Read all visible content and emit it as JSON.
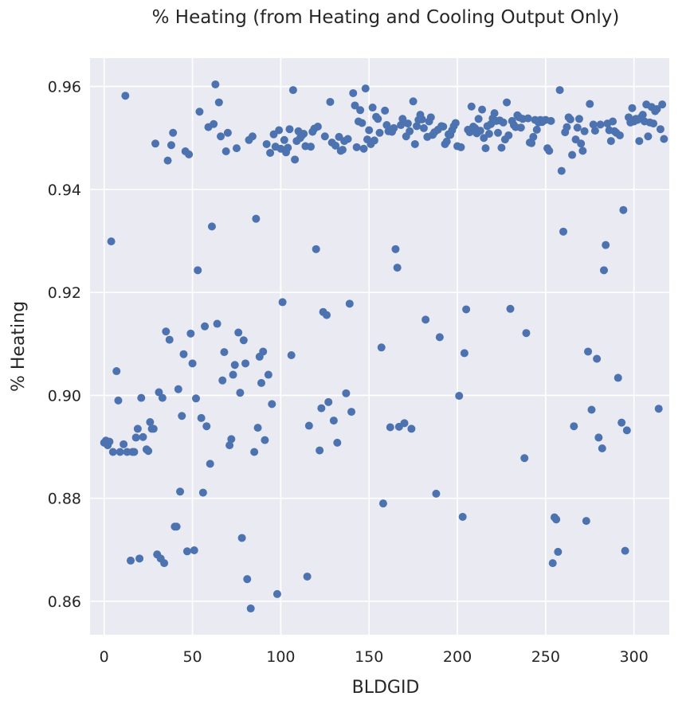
{
  "chart_data": {
    "type": "scatter",
    "title": "% Heating (from Heating and Cooling Output Only)",
    "xlabel": "BLDGID",
    "ylabel": "% Heating",
    "xlim": [
      -8,
      320
    ],
    "ylim": [
      0.8535,
      0.9655
    ],
    "xticks": [
      0,
      50,
      100,
      150,
      200,
      250,
      300
    ],
    "yticks": [
      0.86,
      0.88,
      0.9,
      0.92,
      0.94,
      0.96
    ],
    "ytick_labels": [
      "0.86",
      "0.88",
      "0.90",
      "0.92",
      "0.94",
      "0.96"
    ],
    "grid": true,
    "background": "#eaeaf2",
    "marker_color": "#4c72b0",
    "points": [
      [
        0,
        0.8908
      ],
      [
        1,
        0.8912
      ],
      [
        2,
        0.8903
      ],
      [
        3,
        0.891
      ],
      [
        4,
        0.9299
      ],
      [
        5,
        0.889
      ],
      [
        7,
        0.9047
      ],
      [
        8,
        0.899
      ],
      [
        9,
        0.889
      ],
      [
        11,
        0.8905
      ],
      [
        12,
        0.9582
      ],
      [
        13,
        0.889
      ],
      [
        15,
        0.8679
      ],
      [
        16,
        0.889
      ],
      [
        17,
        0.889
      ],
      [
        18,
        0.8918
      ],
      [
        19,
        0.8935
      ],
      [
        20,
        0.8683
      ],
      [
        21,
        0.8995
      ],
      [
        22,
        0.8919
      ],
      [
        24,
        0.8895
      ],
      [
        25,
        0.8892
      ],
      [
        26,
        0.8948
      ],
      [
        27,
        0.8935
      ],
      [
        28,
        0.8935
      ],
      [
        29,
        0.9489
      ],
      [
        30,
        0.8691
      ],
      [
        31,
        0.9006
      ],
      [
        32,
        0.8683
      ],
      [
        33,
        0.8995
      ],
      [
        34,
        0.8674
      ],
      [
        35,
        0.9124
      ],
      [
        36,
        0.9456
      ],
      [
        37,
        0.9108
      ],
      [
        38,
        0.9486
      ],
      [
        39,
        0.951
      ],
      [
        40,
        0.8745
      ],
      [
        41,
        0.8745
      ],
      [
        42,
        0.9012
      ],
      [
        43,
        0.8813
      ],
      [
        44,
        0.896
      ],
      [
        45,
        0.908
      ],
      [
        46,
        0.9474
      ],
      [
        47,
        0.8697
      ],
      [
        48,
        0.9468
      ],
      [
        49,
        0.912
      ],
      [
        50,
        0.9062
      ],
      [
        51,
        0.8699
      ],
      [
        52,
        0.8994
      ],
      [
        53,
        0.9243
      ],
      [
        54,
        0.9551
      ],
      [
        55,
        0.8956
      ],
      [
        56,
        0.8811
      ],
      [
        57,
        0.9134
      ],
      [
        58,
        0.894
      ],
      [
        59,
        0.9521
      ],
      [
        60,
        0.8867
      ],
      [
        61,
        0.9328
      ],
      [
        62,
        0.9527
      ],
      [
        63,
        0.9604
      ],
      [
        64,
        0.9139
      ],
      [
        65,
        0.9569
      ],
      [
        66,
        0.9503
      ],
      [
        67,
        0.9029
      ],
      [
        68,
        0.9084
      ],
      [
        69,
        0.9474
      ],
      [
        70,
        0.951
      ],
      [
        71,
        0.8903
      ],
      [
        72,
        0.8915
      ],
      [
        73,
        0.904
      ],
      [
        74,
        0.9059
      ],
      [
        75,
        0.948
      ],
      [
        76,
        0.9122
      ],
      [
        77,
        0.9005
      ],
      [
        78,
        0.8723
      ],
      [
        79,
        0.9107
      ],
      [
        80,
        0.9062
      ],
      [
        81,
        0.8643
      ],
      [
        82,
        0.9496
      ],
      [
        83,
        0.8586
      ],
      [
        84,
        0.9503
      ],
      [
        85,
        0.889
      ],
      [
        86,
        0.9343
      ],
      [
        87,
        0.8937
      ],
      [
        88,
        0.9075
      ],
      [
        89,
        0.9024
      ],
      [
        90,
        0.9085
      ],
      [
        91,
        0.8913
      ],
      [
        92,
        0.9488
      ],
      [
        93,
        0.904
      ],
      [
        94,
        0.9471
      ],
      [
        95,
        0.8983
      ],
      [
        96,
        0.9507
      ],
      [
        97,
        0.9483
      ],
      [
        98,
        0.8614
      ],
      [
        99,
        0.9515
      ],
      [
        100,
        0.9479
      ],
      [
        101,
        0.9181
      ],
      [
        102,
        0.9496
      ],
      [
        103,
        0.9472
      ],
      [
        104,
        0.9481
      ],
      [
        105,
        0.9517
      ],
      [
        106,
        0.9078
      ],
      [
        107,
        0.9593
      ],
      [
        108,
        0.9458
      ],
      [
        109,
        0.9494
      ],
      [
        110,
        0.9513
      ],
      [
        111,
        0.95
      ],
      [
        112,
        0.9505
      ],
      [
        113,
        0.9508
      ],
      [
        114,
        0.9484
      ],
      [
        115,
        0.8648
      ],
      [
        116,
        0.8941
      ],
      [
        117,
        0.9483
      ],
      [
        118,
        0.9512
      ],
      [
        119,
        0.9518
      ],
      [
        120,
        0.9284
      ],
      [
        121,
        0.9522
      ],
      [
        122,
        0.8893
      ],
      [
        123,
        0.8975
      ],
      [
        124,
        0.9162
      ],
      [
        125,
        0.9503
      ],
      [
        126,
        0.9156
      ],
      [
        127,
        0.8987
      ],
      [
        128,
        0.957
      ],
      [
        129,
        0.9491
      ],
      [
        130,
        0.8951
      ],
      [
        131,
        0.9485
      ],
      [
        132,
        0.8908
      ],
      [
        133,
        0.9502
      ],
      [
        134,
        0.9475
      ],
      [
        135,
        0.9477
      ],
      [
        136,
        0.9494
      ],
      [
        137,
        0.9004
      ],
      [
        138,
        0.9498
      ],
      [
        139,
        0.9178
      ],
      [
        140,
        0.8968
      ],
      [
        141,
        0.9587
      ],
      [
        142,
        0.9563
      ],
      [
        143,
        0.9482
      ],
      [
        144,
        0.9532
      ],
      [
        145,
        0.9554
      ],
      [
        146,
        0.9529
      ],
      [
        147,
        0.9479
      ],
      [
        148,
        0.9596
      ],
      [
        149,
        0.9497
      ],
      [
        150,
        0.9515
      ],
      [
        151,
        0.9488
      ],
      [
        152,
        0.9559
      ],
      [
        153,
        0.9495
      ],
      [
        154,
        0.9541
      ],
      [
        155,
        0.9537
      ],
      [
        156,
        0.951
      ],
      [
        157,
        0.9093
      ],
      [
        158,
        0.879
      ],
      [
        159,
        0.9553
      ],
      [
        160,
        0.9525
      ],
      [
        161,
        0.9513
      ],
      [
        162,
        0.8938
      ],
      [
        163,
        0.9512
      ],
      [
        164,
        0.9519
      ],
      [
        165,
        0.9284
      ],
      [
        166,
        0.9248
      ],
      [
        167,
        0.8939
      ],
      [
        168,
        0.9525
      ],
      [
        169,
        0.9537
      ],
      [
        170,
        0.8946
      ],
      [
        171,
        0.9503
      ],
      [
        172,
        0.9528
      ],
      [
        173,
        0.9513
      ],
      [
        174,
        0.8935
      ],
      [
        175,
        0.9571
      ],
      [
        176,
        0.9488
      ],
      [
        177,
        0.9523
      ],
      [
        178,
        0.9535
      ],
      [
        179,
        0.9545
      ],
      [
        180,
        0.9536
      ],
      [
        181,
        0.9519
      ],
      [
        182,
        0.9147
      ],
      [
        183,
        0.9502
      ],
      [
        184,
        0.9532
      ],
      [
        185,
        0.954
      ],
      [
        186,
        0.9506
      ],
      [
        187,
        0.9511
      ],
      [
        188,
        0.8809
      ],
      [
        189,
        0.9516
      ],
      [
        190,
        0.9113
      ],
      [
        191,
        0.9523
      ],
      [
        192,
        0.9522
      ],
      [
        193,
        0.9488
      ],
      [
        194,
        0.9493
      ],
      [
        195,
        0.9507
      ],
      [
        196,
        0.9506
      ],
      [
        197,
        0.9515
      ],
      [
        198,
        0.9523
      ],
      [
        199,
        0.9529
      ],
      [
        200,
        0.9484
      ],
      [
        201,
        0.8999
      ],
      [
        202,
        0.9482
      ],
      [
        203,
        0.8764
      ],
      [
        204,
        0.9082
      ],
      [
        205,
        0.9167
      ],
      [
        206,
        0.9516
      ],
      [
        207,
        0.9511
      ],
      [
        208,
        0.9561
      ],
      [
        209,
        0.9522
      ],
      [
        210,
        0.9519
      ],
      [
        211,
        0.9509
      ],
      [
        212,
        0.9537
      ],
      [
        213,
        0.9514
      ],
      [
        214,
        0.9555
      ],
      [
        215,
        0.95
      ],
      [
        216,
        0.948
      ],
      [
        217,
        0.9523
      ],
      [
        218,
        0.9508
      ],
      [
        219,
        0.9527
      ],
      [
        220,
        0.9538
      ],
      [
        221,
        0.9548
      ],
      [
        222,
        0.9533
      ],
      [
        223,
        0.951
      ],
      [
        224,
        0.9534
      ],
      [
        225,
        0.9481
      ],
      [
        226,
        0.953
      ],
      [
        227,
        0.9497
      ],
      [
        228,
        0.9569
      ],
      [
        229,
        0.9505
      ],
      [
        230,
        0.9168
      ],
      [
        231,
        0.9533
      ],
      [
        232,
        0.9525
      ],
      [
        233,
        0.9521
      ],
      [
        234,
        0.9544
      ],
      [
        235,
        0.954
      ],
      [
        236,
        0.952
      ],
      [
        237,
        0.9537
      ],
      [
        238,
        0.8878
      ],
      [
        239,
        0.9121
      ],
      [
        240,
        0.9538
      ],
      [
        241,
        0.9491
      ],
      [
        242,
        0.949
      ],
      [
        243,
        0.9502
      ],
      [
        244,
        0.9535
      ],
      [
        245,
        0.9516
      ],
      [
        246,
        0.953
      ],
      [
        247,
        0.9535
      ],
      [
        248,
        0.9531
      ],
      [
        249,
        0.9534
      ],
      [
        250,
        0.9535
      ],
      [
        251,
        0.948
      ],
      [
        252,
        0.9475
      ],
      [
        253,
        0.9533
      ],
      [
        254,
        0.8674
      ],
      [
        255,
        0.8763
      ],
      [
        256,
        0.8759
      ],
      [
        257,
        0.8696
      ],
      [
        258,
        0.9593
      ],
      [
        259,
        0.9436
      ],
      [
        260,
        0.9318
      ],
      [
        261,
        0.9511
      ],
      [
        262,
        0.9521
      ],
      [
        263,
        0.954
      ],
      [
        264,
        0.9536
      ],
      [
        265,
        0.9467
      ],
      [
        266,
        0.894
      ],
      [
        267,
        0.9497
      ],
      [
        268,
        0.952
      ],
      [
        269,
        0.9537
      ],
      [
        270,
        0.9489
      ],
      [
        271,
        0.9475
      ],
      [
        272,
        0.9513
      ],
      [
        273,
        0.8756
      ],
      [
        274,
        0.9085
      ],
      [
        275,
        0.9566
      ],
      [
        276,
        0.8972
      ],
      [
        277,
        0.9526
      ],
      [
        278,
        0.9514
      ],
      [
        279,
        0.9071
      ],
      [
        280,
        0.8918
      ],
      [
        281,
        0.9526
      ],
      [
        282,
        0.8897
      ],
      [
        283,
        0.9243
      ],
      [
        284,
        0.9292
      ],
      [
        285,
        0.9528
      ],
      [
        286,
        0.9515
      ],
      [
        287,
        0.9494
      ],
      [
        288,
        0.9532
      ],
      [
        289,
        0.9513
      ],
      [
        290,
        0.951
      ],
      [
        291,
        0.9034
      ],
      [
        292,
        0.9505
      ],
      [
        293,
        0.8947
      ],
      [
        294,
        0.936
      ],
      [
        295,
        0.8698
      ],
      [
        296,
        0.8932
      ],
      [
        297,
        0.954
      ],
      [
        298,
        0.953
      ],
      [
        299,
        0.9558
      ],
      [
        300,
        0.9532
      ],
      [
        301,
        0.9537
      ],
      [
        302,
        0.9535
      ],
      [
        303,
        0.9494
      ],
      [
        304,
        0.954
      ],
      [
        305,
        0.9545
      ],
      [
        306,
        0.9532
      ],
      [
        307,
        0.9565
      ],
      [
        308,
        0.9503
      ],
      [
        309,
        0.953
      ],
      [
        310,
        0.956
      ],
      [
        311,
        0.9528
      ],
      [
        312,
        0.9552
      ],
      [
        313,
        0.9556
      ],
      [
        314,
        0.8974
      ],
      [
        315,
        0.9517
      ],
      [
        316,
        0.9565
      ],
      [
        317,
        0.9498
      ]
    ]
  }
}
